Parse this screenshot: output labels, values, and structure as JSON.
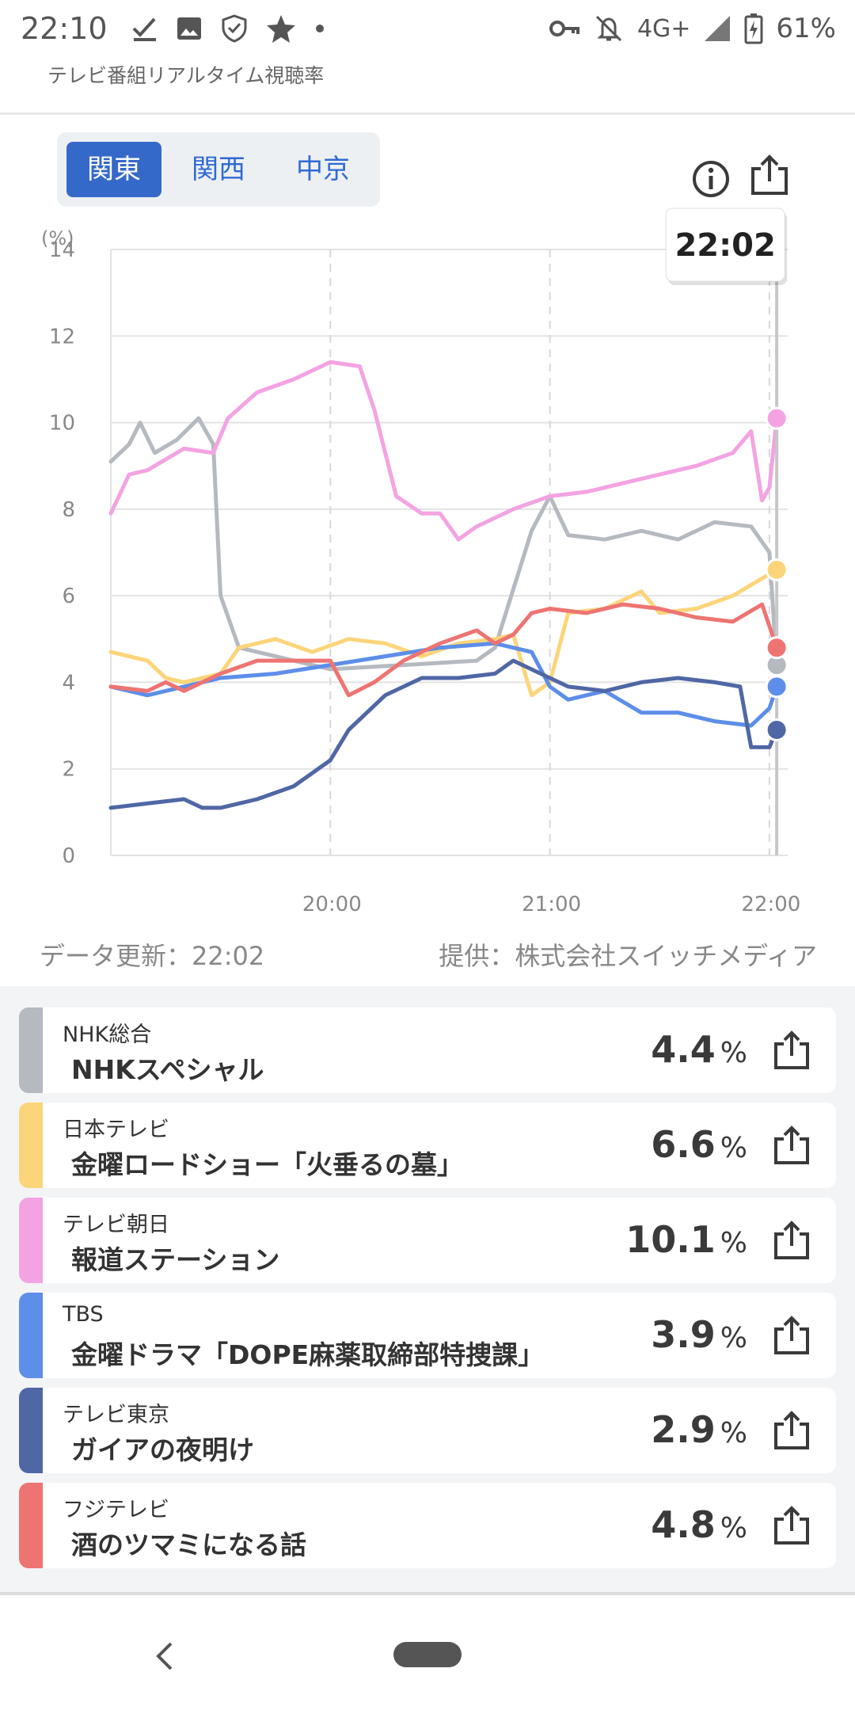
{
  "status": {
    "time": "22:10",
    "network": "4G+",
    "battery": "61%"
  },
  "app": {
    "title": "テレビ番組リアルタイム視聴率"
  },
  "regions": [
    "関東",
    "関西",
    "中京"
  ],
  "tooltip": "22:02",
  "chart_data": {
    "type": "line",
    "ylabel": "(%)",
    "ylim": [
      0,
      14
    ],
    "yticks": [
      "14",
      "12",
      "10",
      "8",
      "6",
      "4",
      "2",
      "0"
    ],
    "xlim": [
      "19:00",
      "22:05"
    ],
    "xticks": [
      "20:00",
      "21:00",
      "22:00"
    ],
    "cursor": "22:02",
    "series": [
      {
        "name": "NHK総合",
        "color": "#b5b9c0",
        "points": [
          [
            "19:00",
            9.1
          ],
          [
            "19:05",
            9.5
          ],
          [
            "19:08",
            10.0
          ],
          [
            "19:12",
            9.3
          ],
          [
            "19:18",
            9.6
          ],
          [
            "19:24",
            10.1
          ],
          [
            "19:28",
            9.5
          ],
          [
            "19:30",
            6.0
          ],
          [
            "19:35",
            4.8
          ],
          [
            "19:45",
            4.6
          ],
          [
            "20:00",
            4.3
          ],
          [
            "20:20",
            4.4
          ],
          [
            "20:40",
            4.5
          ],
          [
            "20:45",
            4.8
          ],
          [
            "20:55",
            7.5
          ],
          [
            "21:00",
            8.3
          ],
          [
            "21:05",
            7.4
          ],
          [
            "21:15",
            7.3
          ],
          [
            "21:25",
            7.5
          ],
          [
            "21:35",
            7.3
          ],
          [
            "21:45",
            7.7
          ],
          [
            "21:55",
            7.6
          ],
          [
            "22:00",
            7.0
          ],
          [
            "22:02",
            4.4
          ]
        ]
      },
      {
        "name": "日本テレビ",
        "color": "#fcd57a",
        "points": [
          [
            "19:00",
            4.7
          ],
          [
            "19:10",
            4.5
          ],
          [
            "19:15",
            4.1
          ],
          [
            "19:20",
            4.0
          ],
          [
            "19:30",
            4.2
          ],
          [
            "19:35",
            4.8
          ],
          [
            "19:45",
            5.0
          ],
          [
            "19:55",
            4.7
          ],
          [
            "20:05",
            5.0
          ],
          [
            "20:15",
            4.9
          ],
          [
            "20:25",
            4.6
          ],
          [
            "20:35",
            4.9
          ],
          [
            "20:45",
            5.0
          ],
          [
            "20:50",
            5.1
          ],
          [
            "20:55",
            3.7
          ],
          [
            "21:00",
            4.0
          ],
          [
            "21:05",
            5.6
          ],
          [
            "21:15",
            5.7
          ],
          [
            "21:25",
            6.1
          ],
          [
            "21:30",
            5.6
          ],
          [
            "21:40",
            5.7
          ],
          [
            "21:50",
            6.0
          ],
          [
            "22:00",
            6.5
          ],
          [
            "22:02",
            6.6
          ]
        ]
      },
      {
        "name": "テレビ朝日",
        "color": "#f3a3e2",
        "points": [
          [
            "19:00",
            7.9
          ],
          [
            "19:05",
            8.8
          ],
          [
            "19:10",
            8.9
          ],
          [
            "19:20",
            9.4
          ],
          [
            "19:28",
            9.3
          ],
          [
            "19:32",
            10.1
          ],
          [
            "19:40",
            10.7
          ],
          [
            "19:50",
            11.0
          ],
          [
            "20:00",
            11.4
          ],
          [
            "20:08",
            11.3
          ],
          [
            "20:12",
            10.3
          ],
          [
            "20:18",
            8.3
          ],
          [
            "20:25",
            7.9
          ],
          [
            "20:30",
            7.9
          ],
          [
            "20:35",
            7.3
          ],
          [
            "20:40",
            7.6
          ],
          [
            "20:50",
            8.0
          ],
          [
            "21:00",
            8.3
          ],
          [
            "21:10",
            8.4
          ],
          [
            "21:20",
            8.6
          ],
          [
            "21:30",
            8.8
          ],
          [
            "21:40",
            9.0
          ],
          [
            "21:50",
            9.3
          ],
          [
            "21:55",
            9.8
          ],
          [
            "21:58",
            8.2
          ],
          [
            "22:00",
            8.5
          ],
          [
            "22:02",
            10.1
          ]
        ]
      },
      {
        "name": "TBS",
        "color": "#5d8ee9",
        "points": [
          [
            "19:00",
            3.9
          ],
          [
            "19:10",
            3.7
          ],
          [
            "19:20",
            3.9
          ],
          [
            "19:30",
            4.1
          ],
          [
            "19:45",
            4.2
          ],
          [
            "20:00",
            4.4
          ],
          [
            "20:15",
            4.6
          ],
          [
            "20:30",
            4.8
          ],
          [
            "20:45",
            4.9
          ],
          [
            "20:55",
            4.7
          ],
          [
            "21:00",
            3.9
          ],
          [
            "21:05",
            3.6
          ],
          [
            "21:15",
            3.8
          ],
          [
            "21:25",
            3.3
          ],
          [
            "21:35",
            3.3
          ],
          [
            "21:45",
            3.1
          ],
          [
            "21:55",
            3.0
          ],
          [
            "22:00",
            3.4
          ],
          [
            "22:02",
            3.9
          ]
        ]
      },
      {
        "name": "テレビ東京",
        "color": "#5067a5",
        "points": [
          [
            "19:00",
            1.1
          ],
          [
            "19:10",
            1.2
          ],
          [
            "19:20",
            1.3
          ],
          [
            "19:25",
            1.1
          ],
          [
            "19:30",
            1.1
          ],
          [
            "19:40",
            1.3
          ],
          [
            "19:50",
            1.6
          ],
          [
            "20:00",
            2.2
          ],
          [
            "20:05",
            2.9
          ],
          [
            "20:15",
            3.7
          ],
          [
            "20:25",
            4.1
          ],
          [
            "20:35",
            4.1
          ],
          [
            "20:45",
            4.2
          ],
          [
            "20:50",
            4.5
          ],
          [
            "21:00",
            4.1
          ],
          [
            "21:05",
            3.9
          ],
          [
            "21:15",
            3.8
          ],
          [
            "21:25",
            4.0
          ],
          [
            "21:35",
            4.1
          ],
          [
            "21:45",
            4.0
          ],
          [
            "21:52",
            3.9
          ],
          [
            "21:55",
            2.5
          ],
          [
            "22:00",
            2.5
          ],
          [
            "22:02",
            2.9
          ]
        ]
      },
      {
        "name": "フジテレビ",
        "color": "#ee7472",
        "points": [
          [
            "19:00",
            3.9
          ],
          [
            "19:10",
            3.8
          ],
          [
            "19:15",
            4.0
          ],
          [
            "19:20",
            3.8
          ],
          [
            "19:30",
            4.2
          ],
          [
            "19:40",
            4.5
          ],
          [
            "19:50",
            4.5
          ],
          [
            "20:00",
            4.5
          ],
          [
            "20:05",
            3.7
          ],
          [
            "20:12",
            4.0
          ],
          [
            "20:20",
            4.5
          ],
          [
            "20:30",
            4.9
          ],
          [
            "20:40",
            5.2
          ],
          [
            "20:45",
            4.9
          ],
          [
            "20:50",
            5.1
          ],
          [
            "20:55",
            5.6
          ],
          [
            "21:00",
            5.7
          ],
          [
            "21:10",
            5.6
          ],
          [
            "21:20",
            5.8
          ],
          [
            "21:30",
            5.7
          ],
          [
            "21:40",
            5.5
          ],
          [
            "21:50",
            5.4
          ],
          [
            "21:58",
            5.8
          ],
          [
            "22:02",
            4.8
          ]
        ]
      }
    ]
  },
  "footer": {
    "updated": "データ更新：22:02",
    "source": "提供：株式会社スイッチメディア"
  },
  "programs": [
    {
      "channel": "NHK総合",
      "title": "NHKスペシャル",
      "rating": "4.4",
      "unit": "%",
      "color": "#b5b9c0"
    },
    {
      "channel": "日本テレビ",
      "title": "金曜ロードショー「火垂るの墓」",
      "rating": "6.6",
      "unit": "%",
      "color": "#fcd57a"
    },
    {
      "channel": "テレビ朝日",
      "title": "報道ステーション",
      "rating": "10.1",
      "unit": "%",
      "color": "#f3a3e2"
    },
    {
      "channel": "TBS",
      "title": "金曜ドラマ「DOPE麻薬取締部特捜課」",
      "rating": "3.9",
      "unit": "%",
      "color": "#5d8ee9"
    },
    {
      "channel": "テレビ東京",
      "title": "ガイアの夜明け",
      "rating": "2.9",
      "unit": "%",
      "color": "#5067a5"
    },
    {
      "channel": "フジテレビ",
      "title": "酒のツマミになる話",
      "rating": "4.8",
      "unit": "%",
      "color": "#ee7472"
    }
  ]
}
